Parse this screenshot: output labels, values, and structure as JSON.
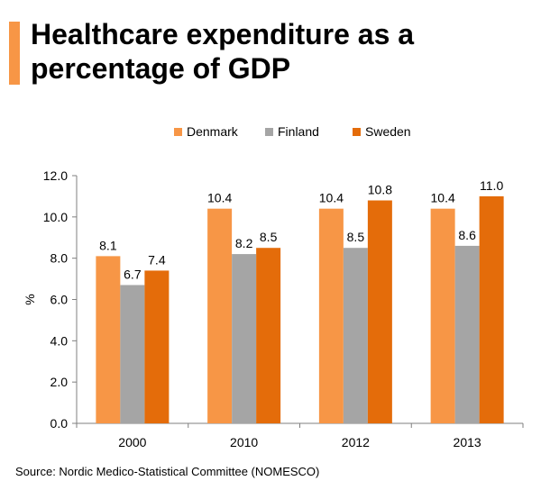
{
  "title": "Healthcare expenditure as a percentage of GDP",
  "source": "Source: Nordic Medico-Statistical Committee (NOMESCO)",
  "colors": {
    "Denmark": "#f79646",
    "Finland": "#a5a5a5",
    "Sweden": "#e46c0a",
    "axis": "#7f7f7f"
  },
  "chart_data": {
    "type": "bar",
    "categories": [
      "2000",
      "2010",
      "2012",
      "2013"
    ],
    "series": [
      {
        "name": "Denmark",
        "values": [
          8.1,
          10.4,
          10.4,
          10.4
        ]
      },
      {
        "name": "Finland",
        "values": [
          6.7,
          8.2,
          8.5,
          8.6
        ]
      },
      {
        "name": "Sweden",
        "values": [
          7.4,
          8.5,
          10.8,
          11.0
        ]
      }
    ],
    "ylabel": "%",
    "ylim": [
      0,
      12
    ],
    "yticks": [
      "0.0",
      "2.0",
      "4.0",
      "6.0",
      "8.0",
      "10.0",
      "12.0"
    ],
    "data_labels": [
      [
        "8.1",
        "10.4",
        "10.4",
        "10.4"
      ],
      [
        "6.7",
        "8.2",
        "8.5",
        "8.6"
      ],
      [
        "7.4",
        "8.5",
        "10.8",
        "11.0"
      ]
    ],
    "grid": false,
    "legend_position": "top-center"
  }
}
